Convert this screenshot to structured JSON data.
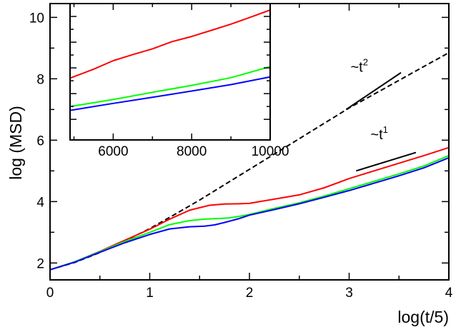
{
  "chart_data": [
    {
      "type": "line",
      "xlabel": "log(t/5)",
      "ylabel": "log (MSD)",
      "xlim": [
        0,
        4
      ],
      "ylim": [
        1.45,
        10.45
      ],
      "x_ticks": [
        "0",
        "1",
        "2",
        "3",
        "4"
      ],
      "y_ticks": [
        "2",
        "4",
        "6",
        "8",
        "10"
      ],
      "grid": false,
      "series": [
        {
          "color": "#000000",
          "style": "dashed",
          "points": [
            [
              0,
              1.78
            ],
            [
              0.25,
              2.02
            ],
            [
              0.5,
              2.34
            ],
            [
              0.75,
              2.72
            ],
            [
              1.0,
              3.12
            ],
            [
              1.25,
              3.58
            ],
            [
              1.5,
              4.05
            ],
            [
              1.75,
              4.55
            ],
            [
              2.0,
              5.05
            ],
            [
              2.25,
              5.55
            ],
            [
              2.5,
              6.05
            ],
            [
              2.75,
              6.55
            ],
            [
              3.0,
              7.05
            ],
            [
              3.25,
              7.5
            ],
            [
              3.5,
              7.95
            ],
            [
              3.75,
              8.4
            ],
            [
              4.0,
              8.85
            ]
          ]
        },
        {
          "color": "#ff0000",
          "style": "solid",
          "points": [
            [
              0,
              1.78
            ],
            [
              0.25,
              2.04
            ],
            [
              0.5,
              2.38
            ],
            [
              0.75,
              2.74
            ],
            [
              1.0,
              3.1
            ],
            [
              1.2,
              3.43
            ],
            [
              1.4,
              3.72
            ],
            [
              1.6,
              3.88
            ],
            [
              1.75,
              3.92
            ],
            [
              1.9,
              3.93
            ],
            [
              2.0,
              3.94
            ],
            [
              2.1,
              4.0
            ],
            [
              2.25,
              4.08
            ],
            [
              2.5,
              4.22
            ],
            [
              2.75,
              4.45
            ],
            [
              3.0,
              4.75
            ],
            [
              3.25,
              5.0
            ],
            [
              3.5,
              5.25
            ],
            [
              3.75,
              5.5
            ],
            [
              4.0,
              5.76
            ]
          ]
        },
        {
          "color": "#00ff00",
          "style": "solid",
          "points": [
            [
              0,
              1.78
            ],
            [
              0.25,
              2.04
            ],
            [
              0.5,
              2.37
            ],
            [
              0.75,
              2.7
            ],
            [
              1.0,
              3.0
            ],
            [
              1.2,
              3.25
            ],
            [
              1.4,
              3.38
            ],
            [
              1.55,
              3.43
            ],
            [
              1.7,
              3.45
            ],
            [
              1.8,
              3.47
            ],
            [
              1.9,
              3.52
            ],
            [
              2.0,
              3.58
            ],
            [
              2.25,
              3.78
            ],
            [
              2.5,
              3.96
            ],
            [
              2.75,
              4.18
            ],
            [
              3.0,
              4.42
            ],
            [
              3.25,
              4.66
            ],
            [
              3.5,
              4.9
            ],
            [
              3.75,
              5.16
            ],
            [
              4.0,
              5.5
            ]
          ]
        },
        {
          "color": "#0000ff",
          "style": "solid",
          "points": [
            [
              0,
              1.78
            ],
            [
              0.25,
              2.03
            ],
            [
              0.5,
              2.35
            ],
            [
              0.75,
              2.66
            ],
            [
              1.0,
              2.93
            ],
            [
              1.2,
              3.11
            ],
            [
              1.4,
              3.18
            ],
            [
              1.55,
              3.2
            ],
            [
              1.65,
              3.24
            ],
            [
              1.75,
              3.32
            ],
            [
              1.9,
              3.45
            ],
            [
              2.0,
              3.56
            ],
            [
              2.25,
              3.74
            ],
            [
              2.5,
              3.93
            ],
            [
              2.75,
              4.14
            ],
            [
              3.0,
              4.36
            ],
            [
              3.25,
              4.6
            ],
            [
              3.5,
              4.84
            ],
            [
              3.75,
              5.1
            ],
            [
              4.0,
              5.43
            ]
          ]
        }
      ],
      "annotations": [
        {
          "text": "~t",
          "superscript": "2",
          "x": 3.0,
          "y": 8.0
        },
        {
          "text": "~t",
          "superscript": "1",
          "x": 3.2,
          "y": 5.8
        }
      ],
      "reference_lines": [
        {
          "label": "slope-2",
          "points": [
            [
              2.97,
              7.0
            ],
            [
              3.52,
              8.2
            ]
          ]
        },
        {
          "label": "slope-1",
          "points": [
            [
              3.07,
              5.0
            ],
            [
              3.67,
              5.6
            ]
          ]
        }
      ]
    },
    {
      "type": "line",
      "inset": true,
      "xlim": [
        4900,
        10000
      ],
      "ylim": [
        5.2,
        10.5
      ],
      "x_ticks": [
        "6000",
        "8000",
        "10000"
      ],
      "grid": false,
      "series": [
        {
          "color": "#ff0000",
          "style": "solid",
          "points": [
            [
              4900,
              7.6
            ],
            [
              5500,
              7.95
            ],
            [
              6000,
              8.28
            ],
            [
              6500,
              8.52
            ],
            [
              7000,
              8.74
            ],
            [
              7500,
              9.02
            ],
            [
              8000,
              9.22
            ],
            [
              8500,
              9.46
            ],
            [
              9000,
              9.7
            ],
            [
              9500,
              9.97
            ],
            [
              10000,
              10.25
            ]
          ]
        },
        {
          "color": "#00ff00",
          "style": "solid",
          "points": [
            [
              4900,
              6.5
            ],
            [
              6000,
              6.77
            ],
            [
              7000,
              7.05
            ],
            [
              8000,
              7.32
            ],
            [
              9000,
              7.62
            ],
            [
              10000,
              8.05
            ]
          ]
        },
        {
          "color": "#0000ff",
          "style": "solid",
          "points": [
            [
              4900,
              6.35
            ],
            [
              6000,
              6.62
            ],
            [
              7000,
              6.86
            ],
            [
              8000,
              7.1
            ],
            [
              9000,
              7.35
            ],
            [
              10000,
              7.65
            ]
          ]
        }
      ]
    }
  ]
}
